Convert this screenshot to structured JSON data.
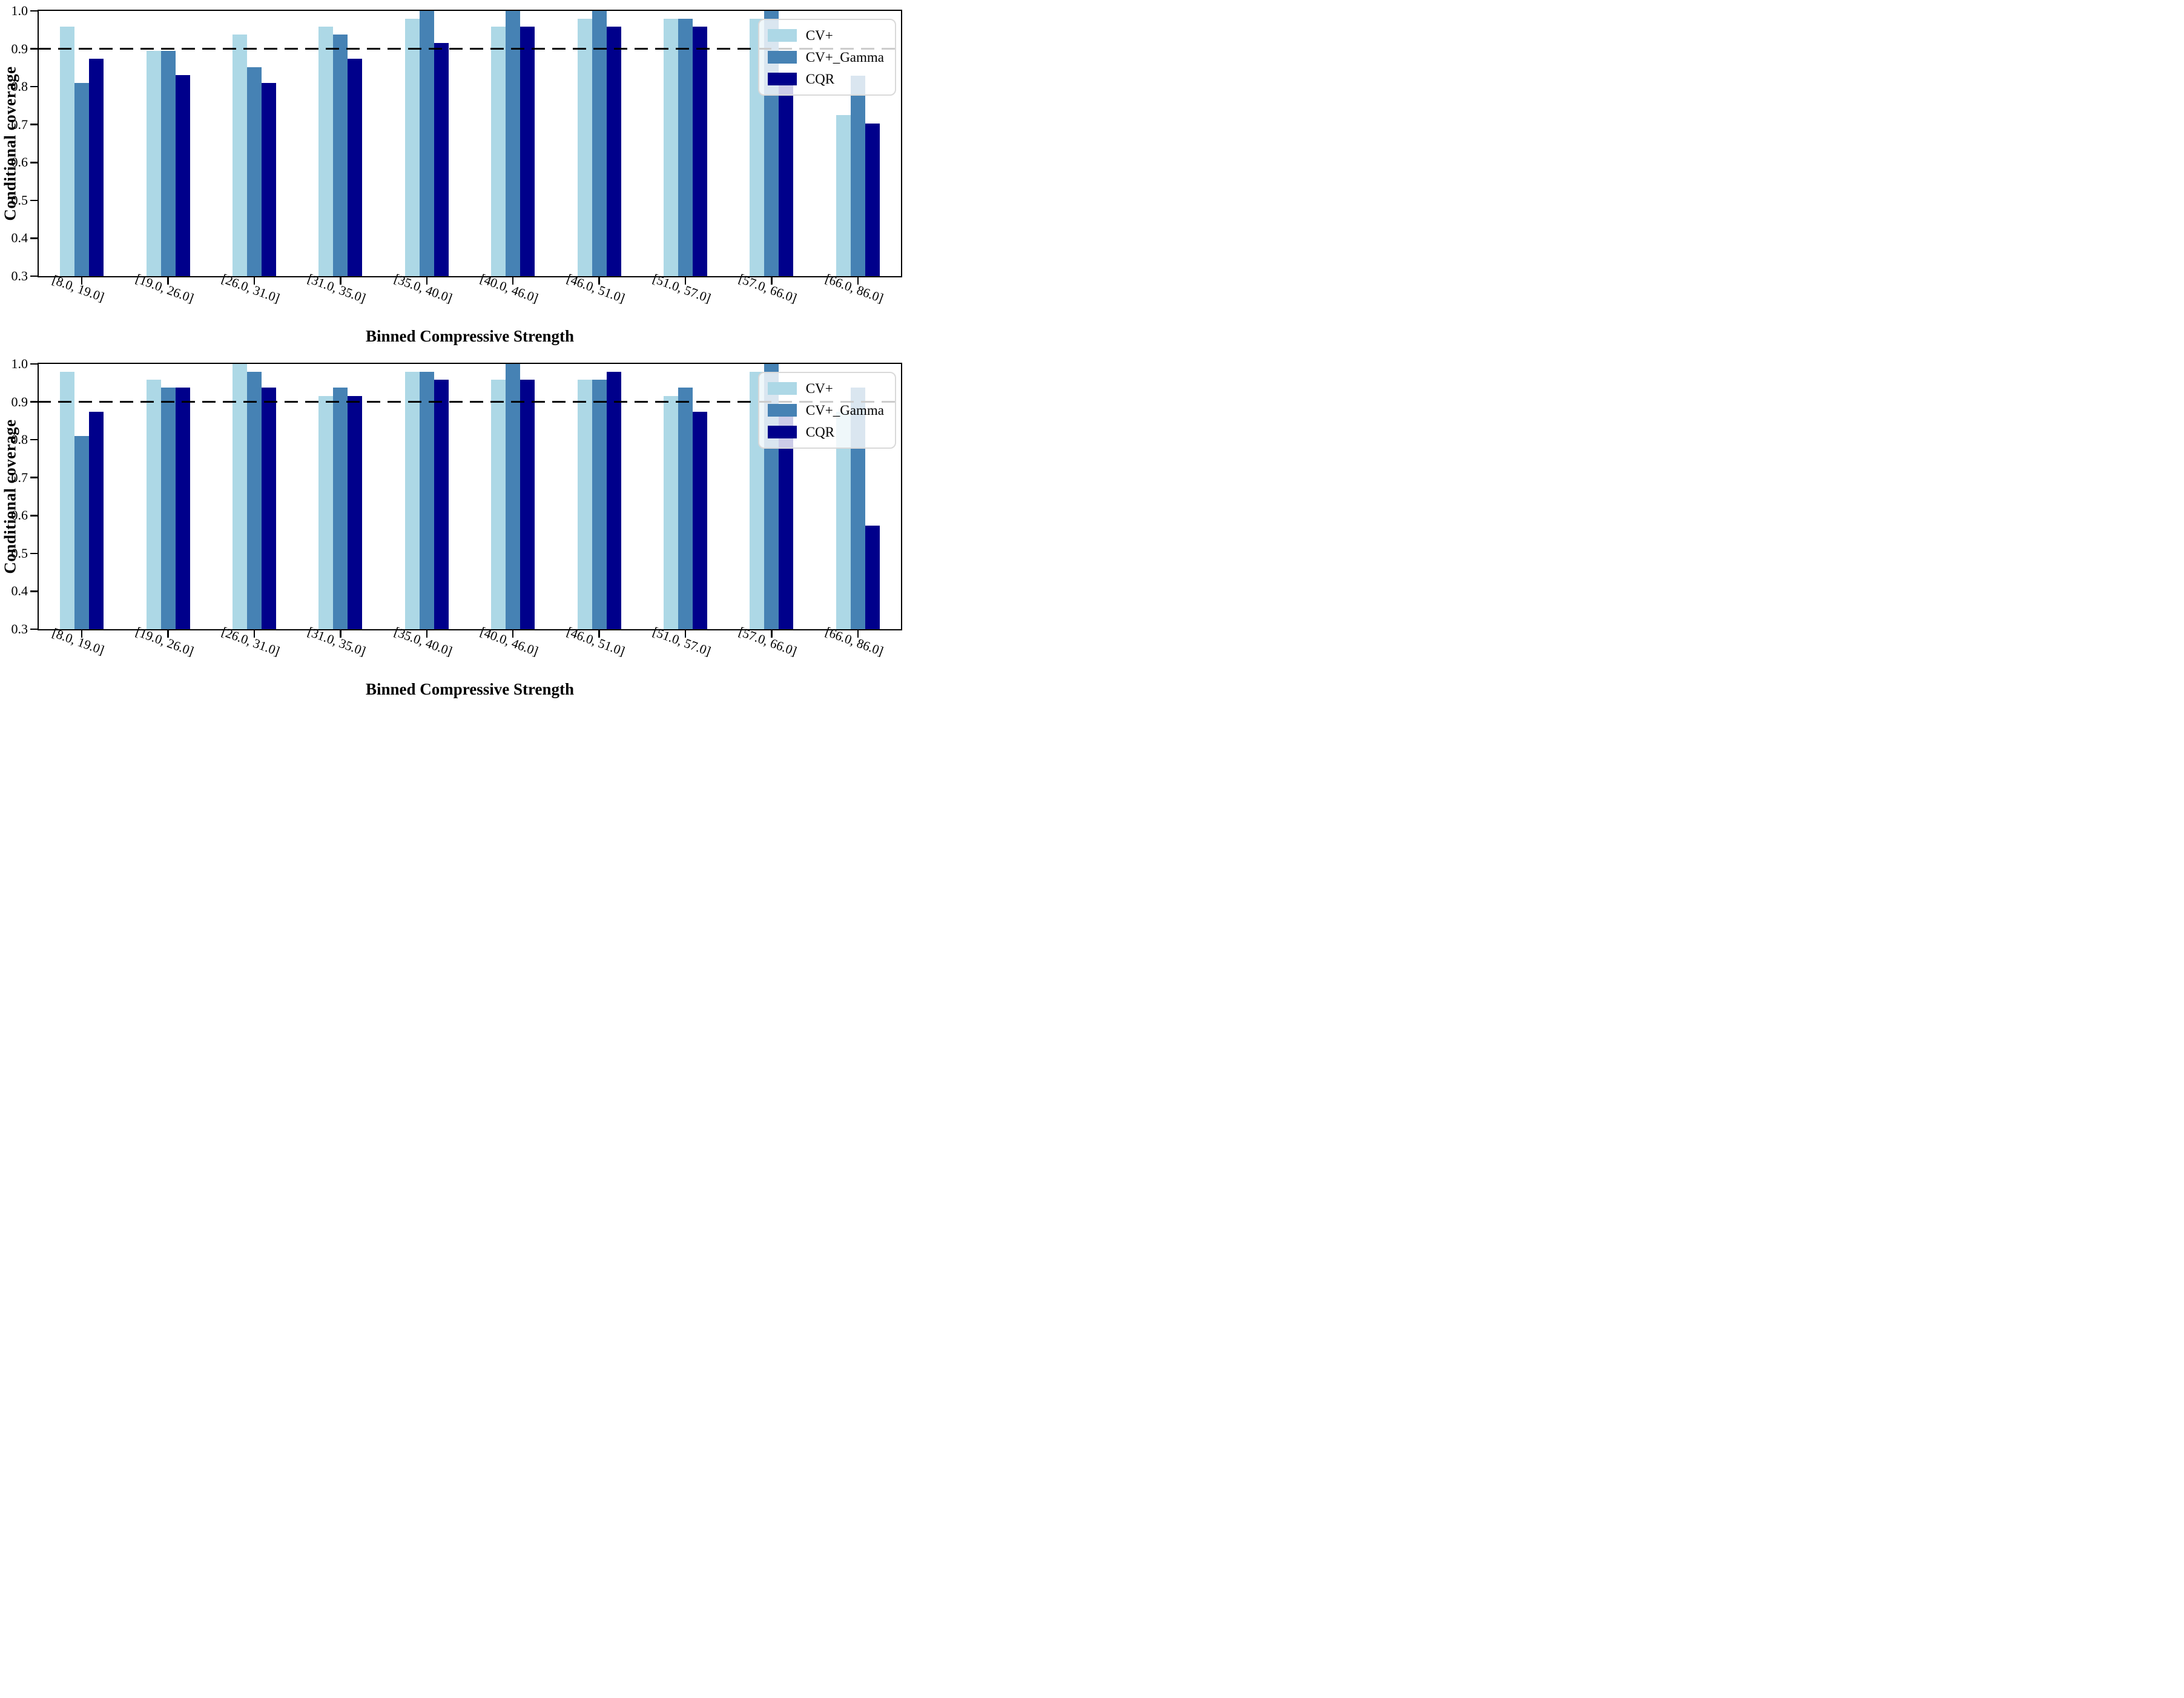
{
  "chart_data": [
    {
      "type": "bar",
      "position": "top",
      "ylabel": "Conditional coverage",
      "xlabel": "Binned Compressive Strength",
      "ylim": [
        0.3,
        1.0
      ],
      "yticks": [
        0.3,
        0.4,
        0.5,
        0.6,
        0.7,
        0.8,
        0.9,
        1.0
      ],
      "reference_line": 0.9,
      "grid": false,
      "legend_position": "upper right",
      "categories": [
        "[8.0, 19.0]",
        "[19.0, 26.0]",
        "[26.0, 31.0]",
        "[31.0, 35.0]",
        "[35.0, 40.0]",
        "[40.0, 46.0]",
        "[46.0, 51.0]",
        "[51.0, 57.0]",
        "[57.0, 66.0]",
        "[66.0, 86.0]"
      ],
      "series": [
        {
          "name": "CV+",
          "color": "#ADD8E6",
          "values": [
            0.958,
            0.894,
            0.937,
            0.958,
            0.979,
            0.958,
            0.979,
            0.979,
            0.979,
            0.725
          ]
        },
        {
          "name": "CV+_Gamma",
          "color": "#4682B4",
          "values": [
            0.81,
            0.894,
            0.851,
            0.937,
            1.0,
            1.0,
            1.0,
            0.979,
            1.0,
            0.829
          ]
        },
        {
          "name": "CQR",
          "color": "#00008B",
          "values": [
            0.873,
            0.83,
            0.81,
            0.873,
            0.915,
            0.958,
            0.958,
            0.958,
            0.825,
            0.702
          ]
        }
      ]
    },
    {
      "type": "bar",
      "position": "bottom",
      "ylabel": "Conditional coverage",
      "xlabel": "Binned Compressive Strength",
      "ylim": [
        0.3,
        1.0
      ],
      "yticks": [
        0.3,
        0.4,
        0.5,
        0.6,
        0.7,
        0.8,
        0.9,
        1.0
      ],
      "reference_line": 0.9,
      "grid": false,
      "legend_position": "upper right",
      "categories": [
        "[8.0, 19.0]",
        "[19.0, 26.0]",
        "[26.0, 31.0]",
        "[31.0, 35.0]",
        "[35.0, 40.0]",
        "[40.0, 46.0]",
        "[46.0, 51.0]",
        "[51.0, 57.0]",
        "[57.0, 66.0]",
        "[66.0, 86.0]"
      ],
      "series": [
        {
          "name": "CV+",
          "color": "#ADD8E6",
          "values": [
            0.979,
            0.958,
            1.0,
            0.915,
            0.979,
            0.958,
            0.958,
            0.915,
            0.979,
            0.873
          ]
        },
        {
          "name": "CV+_Gamma",
          "color": "#4682B4",
          "values": [
            0.81,
            0.937,
            0.979,
            0.937,
            0.979,
            1.0,
            0.958,
            0.937,
            1.0,
            0.937
          ]
        },
        {
          "name": "CQR",
          "color": "#00008B",
          "values": [
            0.873,
            0.937,
            0.937,
            0.915,
            0.958,
            0.958,
            0.979,
            0.873,
            0.869,
            0.573
          ]
        }
      ]
    }
  ],
  "styles": {
    "reference_line_color": "#000000",
    "spine_color": "#000000",
    "legend_border_color": "#d9d9d9"
  }
}
